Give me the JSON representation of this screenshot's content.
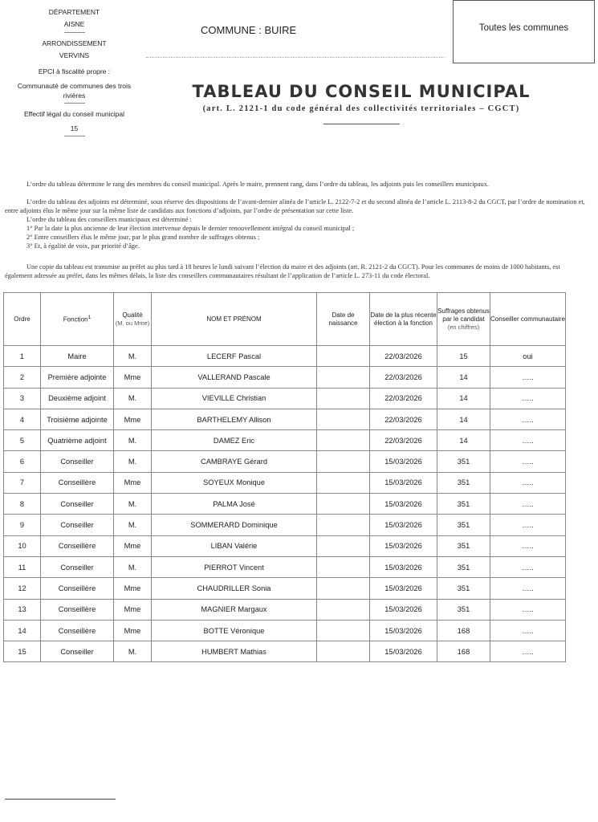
{
  "left": {
    "departement_label": "DÉPARTEMENT",
    "departement": "AISNE",
    "arrondissement_label": "ARRONDISSEMENT",
    "arrondissement": "VERVINS",
    "epci_label": "EPCI à fiscalité propre :",
    "epci": "Communauté de communes des trois rivières",
    "effectif_label": "Effectif légal du conseil municipal",
    "effectif": "15"
  },
  "commune": "COMMUNE : BUIRE",
  "box": "Toutes les communes",
  "title": "TABLEAU DU CONSEIL MUNICIPAL",
  "subtitle": "(art. L. 2121-1 du code général des collectivités territoriales – CGCT)",
  "paragraphs": {
    "p1": "L’ordre du tableau détermine le rang des membres du conseil municipal. Après le maire, prennent rang, dans l’ordre du tableau, les adjoints puis les conseillers municipaux.",
    "p2": "L’ordre du tableau des adjoints est déterminé, sous réserve des dispositions de l’avant-dernier alinéa de l’article L. 2122-7-2 et du second alinéa de l’article L. 2113-8-2 du CGCT, par l’ordre de nomination et, entre adjoints élus le même jour sur la même liste de candidats aux fonctions d’adjoints, par l’ordre de présentation sur cette liste.",
    "p3": "L’ordre du tableau des conseillers municipaux est déterminé :",
    "l1": "1° Par la date la plus ancienne de leur élection intervenue depuis le dernier renouvellement intégral du conseil municipal ;",
    "l2": "2° Entre conseillers élus le même jour, par le plus grand nombre de suffrages obtenus ;",
    "l3": "3° Et, à égalité de voix, par priorité d’âge.",
    "p4": "Une copie du tableau est transmise au préfet au plus tard à 18 heures le lundi suivant l’élection du maire et des adjoints (art. R. 2121-2 du CGCT). Pour les communes de moins de 1000 habitants, est également adressée au préfet, dans les mêmes délais, la liste des conseillers communautaires résultant de l’application de l’article L. 273-11 du code électoral."
  },
  "table": {
    "headers": {
      "ordre": "Ordre",
      "fonction": "Fonction",
      "fonction_note": "1",
      "qualite": "Qualité",
      "qualite_sub": "(M. ou Mme)",
      "nom": "NOM ET PRÉNOM",
      "naissance": "Date de naissance",
      "election": "Date de la plus récente élection à la fonction",
      "suffrages": "Suffrages obtenus par le candidat",
      "suffrages_sub": "(en chiffres)",
      "communautaire": "Conseiller communautaire"
    },
    "rows": [
      [
        "1",
        "Maire",
        "M.",
        "LECERF Pascal",
        "",
        "22/03/2026",
        "15",
        "oui"
      ],
      [
        "2",
        "Première adjointe",
        "Mme",
        "VALLERAND Pascale",
        "",
        "22/03/2026",
        "14",
        "….."
      ],
      [
        "3",
        "Deuxième adjoint",
        "M.",
        "VIEVILLE Christian",
        "",
        "22/03/2026",
        "14",
        "….."
      ],
      [
        "4",
        "Troisième adjointe",
        "Mme",
        "BARTHELEMY Allison",
        "",
        "22/03/2026",
        "14",
        "….."
      ],
      [
        "5",
        "Quatrième adjoint",
        "M.",
        "DAMEZ Eric",
        "",
        "22/03/2026",
        "14",
        "….."
      ],
      [
        "6",
        "Conseiller",
        "M.",
        "CAMBRAYE Gérard",
        "",
        "15/03/2026",
        "351",
        "….."
      ],
      [
        "7",
        "Conseillère",
        "Mme",
        "SOYEUX Monique",
        "",
        "15/03/2026",
        "351",
        "….."
      ],
      [
        "8",
        "Conseiller",
        "M.",
        "PALMA José",
        "",
        "15/03/2026",
        "351",
        "….."
      ],
      [
        "9",
        "Conseiller",
        "M.",
        "SOMMERARD Dominique",
        "",
        "15/03/2026",
        "351",
        "….."
      ],
      [
        "10",
        "Conseillère",
        "Mme",
        "LIBAN Valérie",
        "",
        "15/03/2026",
        "351",
        "….."
      ],
      [
        "11",
        "Conseiller",
        "M.",
        "PIERROT Vincent",
        "",
        "15/03/2026",
        "351",
        "….."
      ],
      [
        "12",
        "Conseillère",
        "Mme",
        "CHAUDRILLER Sonia",
        "",
        "15/03/2026",
        "351",
        "….."
      ],
      [
        "13",
        "Conseillère",
        "Mme",
        "MAGNIER Margaux",
        "",
        "15/03/2026",
        "351",
        "….."
      ],
      [
        "14",
        "Conseillère",
        "Mme",
        "BOTTE Véronique",
        "",
        "15/03/2026",
        "168",
        "….."
      ],
      [
        "15",
        "Conseiller",
        "M.",
        "HUMBERT Mathias",
        "",
        "15/03/2026",
        "168",
        "….."
      ]
    ]
  }
}
